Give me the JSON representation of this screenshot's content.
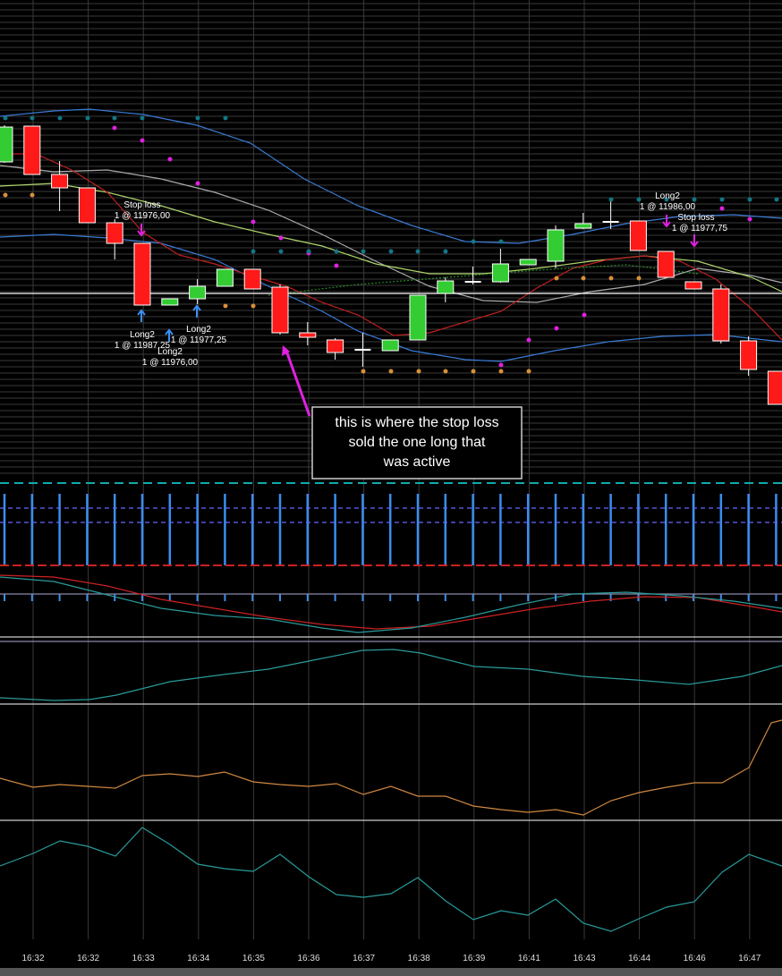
{
  "time_axis": {
    "labels": [
      "16:32",
      "16:32",
      "16:33",
      "16:34",
      "16:35",
      "16:36",
      "16:37",
      "16:38",
      "16:39",
      "16:41",
      "16:43",
      "16:44",
      "16:46",
      "16:47"
    ]
  },
  "orders": [
    {
      "title": "Stop loss",
      "detail": "1 @ 11976,00"
    },
    {
      "title": "Long2",
      "detail": "1 @ 11987,25"
    },
    {
      "title": "Long2",
      "detail": "1 @ 11977,25"
    },
    {
      "title": "Long2",
      "detail": "1 @ 11976,00"
    },
    {
      "title": "Long2",
      "detail": "1 @ 11986,00"
    },
    {
      "title": "Stop loss",
      "detail": "1 @ 11977,75"
    }
  ],
  "callout": {
    "lines": [
      "this is where the stop loss",
      "sold the one long that",
      "was active"
    ]
  }
}
